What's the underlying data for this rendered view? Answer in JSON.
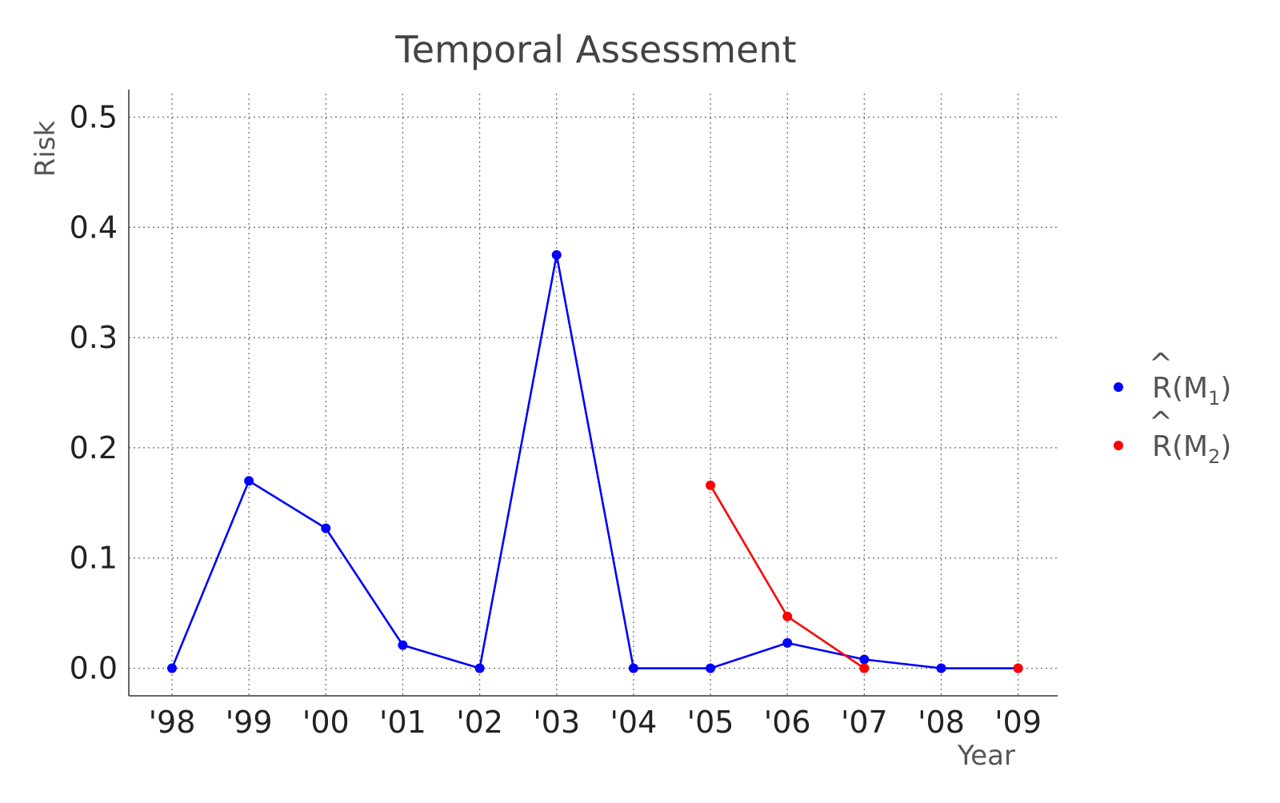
{
  "chart_data": {
    "type": "line",
    "title": "Temporal Assessment",
    "xlabel": "Year",
    "ylabel": "Risk",
    "categories": [
      "'98",
      "'99",
      "'00",
      "'01",
      "'02",
      "'03",
      "'04",
      "'05",
      "'06",
      "'07",
      "'08",
      "'09"
    ],
    "ylim": [
      -0.025,
      0.525
    ],
    "yticks": [
      "0.0",
      "0.1",
      "0.2",
      "0.3",
      "0.4",
      "0.5"
    ],
    "ytick_values": [
      0,
      0.1,
      0.2,
      0.3,
      0.4,
      0.5
    ],
    "grid": true,
    "grid_style": "dotted",
    "legend_position": "right",
    "series": [
      {
        "legend": {
          "hat": "^",
          "base": "R(M",
          "sub": "1",
          "close": ")"
        },
        "color": "#0000ff",
        "values": [
          0.0,
          0.17,
          0.127,
          0.021,
          0.0,
          0.375,
          0.0,
          0.0,
          0.023,
          0.008,
          0.0,
          0.0
        ]
      },
      {
        "legend": {
          "hat": "^",
          "base": "R(M",
          "sub": "2",
          "close": ")"
        },
        "color": "#ff0000",
        "values": [
          null,
          null,
          null,
          null,
          null,
          null,
          null,
          0.166,
          0.047,
          0.0,
          null,
          0.0
        ],
        "segments": [
          [
            7,
            8,
            9
          ]
        ]
      }
    ]
  }
}
